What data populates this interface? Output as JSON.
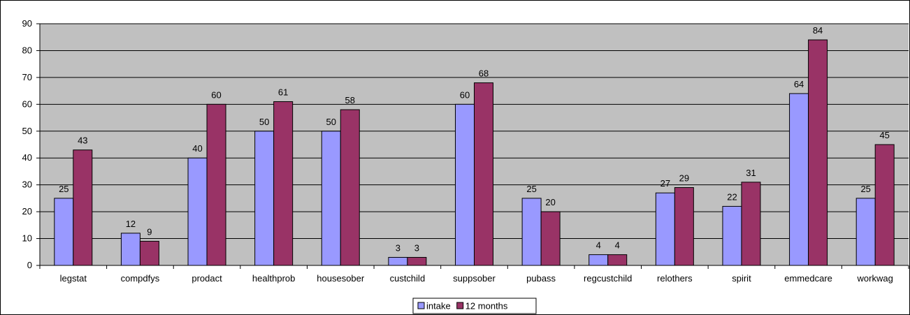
{
  "chart_data": {
    "type": "bar",
    "categories": [
      "legstat",
      "compdfys",
      "prodact",
      "healthprob",
      "housesober",
      "custchild",
      "suppsober",
      "pubass",
      "regcustchild",
      "relothers",
      "spirit",
      "emmedcare",
      "workwag"
    ],
    "series": [
      {
        "name": "intake",
        "color": "#9999ff",
        "values": [
          25,
          12,
          40,
          50,
          50,
          3,
          60,
          25,
          4,
          27,
          22,
          64,
          25
        ]
      },
      {
        "name": "12 months",
        "color": "#993366",
        "values": [
          43,
          9,
          60,
          61,
          58,
          3,
          68,
          20,
          4,
          29,
          31,
          84,
          45
        ]
      }
    ],
    "ylim": [
      0,
      90
    ],
    "yticks": [
      0,
      10,
      20,
      30,
      40,
      50,
      60,
      70,
      80,
      90
    ],
    "grid": true,
    "plot_background": "#c0c0c0",
    "legend_position": "bottom-center",
    "title": "",
    "xlabel": "",
    "ylabel": ""
  }
}
